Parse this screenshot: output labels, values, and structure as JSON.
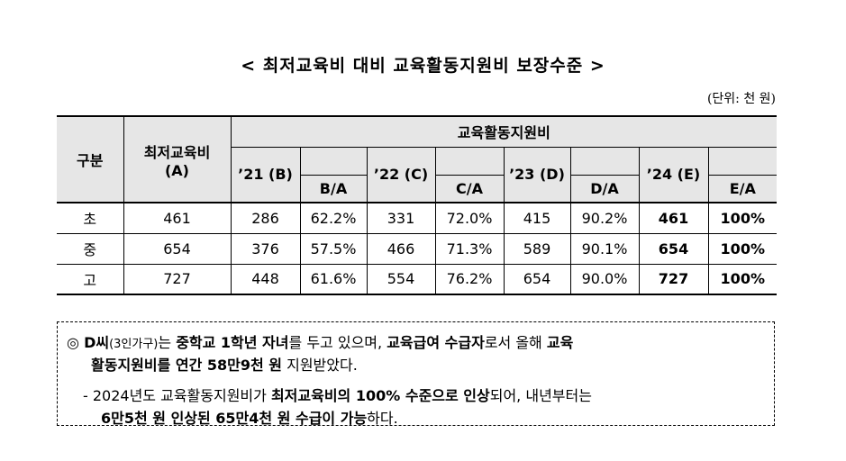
{
  "title": "< 최저교육비 대비 교육활동지원비 보장수준 >",
  "unit": "(단위: 천 원)",
  "table": {
    "header_category": "구분",
    "header_min_line1": "최저교육비",
    "header_min_line2": "(A)",
    "header_support": "교육활동지원비",
    "years": [
      {
        "year": "’21 (B)",
        "ratio": "B/A"
      },
      {
        "year": "’22 (C)",
        "ratio": "C/A"
      },
      {
        "year": "’23 (D)",
        "ratio": "D/A"
      },
      {
        "year": "’24 (E)",
        "ratio": "E/A"
      }
    ],
    "rows": [
      {
        "level": "초",
        "min": "461",
        "v21": "286",
        "r21": "62.2%",
        "v22": "331",
        "r22": "72.0%",
        "v23": "415",
        "r23": "90.2%",
        "v24": "461",
        "r24": "100%"
      },
      {
        "level": "중",
        "min": "654",
        "v21": "376",
        "r21": "57.5%",
        "v22": "466",
        "r22": "71.3%",
        "v23": "589",
        "r23": "90.1%",
        "v24": "654",
        "r24": "100%"
      },
      {
        "level": "고",
        "min": "727",
        "v21": "448",
        "r21": "61.6%",
        "v22": "554",
        "r22": "76.2%",
        "v23": "654",
        "r23": "90.0%",
        "v24": "727",
        "r24": "100%"
      }
    ]
  },
  "note": {
    "p1_mark": "◎",
    "p1_a": "D씨",
    "p1_b": "(3인가구)",
    "p1_c": "는 ",
    "p1_d": "중학교 1학년 자녀",
    "p1_e": "를 두고 있으며, ",
    "p1_f": "교육급여 수급자",
    "p1_g": "로서 올해 ",
    "p1_h": "교육",
    "p1_line2_a": "활동지원비를 연간 58만9천 원",
    "p1_line2_b": " 지원받았다.",
    "p2_a": "- 2024년도 교육활동지원비가 ",
    "p2_b": "최저교육비의 100% 수준으로 인상",
    "p2_c": "되어, 내년부터는",
    "p2_line2_a": "6만5천 원 인상된 65만4천 원 수급이 가능",
    "p2_line2_b": "하다."
  }
}
